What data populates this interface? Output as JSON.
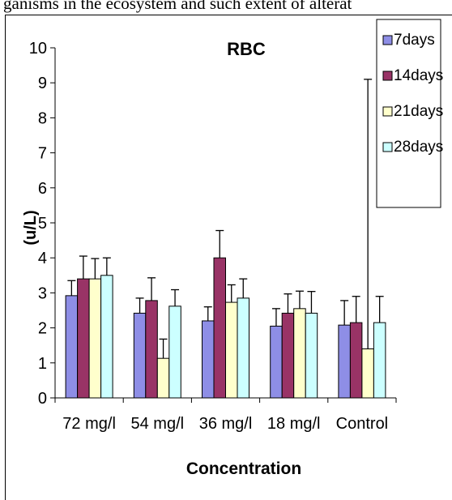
{
  "page": {
    "top_text": "ganisms in the ecosystem and such extent of alterat"
  },
  "chart_data": {
    "type": "bar",
    "title": "RBC",
    "xlabel": "Concentration",
    "ylabel": "(u/L)",
    "ylim": [
      0,
      10
    ],
    "yticks": [
      "0",
      "1",
      "2",
      "3",
      "4",
      "5",
      "6",
      "7",
      "8",
      "9",
      "10"
    ],
    "categories": [
      "72 mg/l",
      "54 mg/l",
      "36 mg/l",
      "18 mg/l",
      "Control"
    ],
    "series": [
      {
        "name": "7days",
        "color": "#8e8ee6",
        "values": [
          2.92,
          2.42,
          2.2,
          2.05,
          2.08
        ],
        "errors": [
          0.43,
          0.43,
          0.4,
          0.5,
          0.7
        ]
      },
      {
        "name": "14days",
        "color": "#993366",
        "values": [
          3.4,
          2.78,
          4.0,
          2.42,
          2.15
        ],
        "errors": [
          0.65,
          0.65,
          0.78,
          0.55,
          0.75
        ]
      },
      {
        "name": "21days",
        "color": "#ffffcc",
        "values": [
          3.4,
          1.13,
          2.73,
          2.55,
          1.4
        ],
        "errors": [
          0.58,
          0.55,
          0.5,
          0.5,
          7.7
        ]
      },
      {
        "name": "28days",
        "color": "#ccffff",
        "values": [
          3.5,
          2.62,
          2.85,
          2.42,
          2.15
        ],
        "errors": [
          0.5,
          0.47,
          0.55,
          0.62,
          0.75
        ]
      }
    ],
    "legend_position": "top-right",
    "grid": false
  }
}
